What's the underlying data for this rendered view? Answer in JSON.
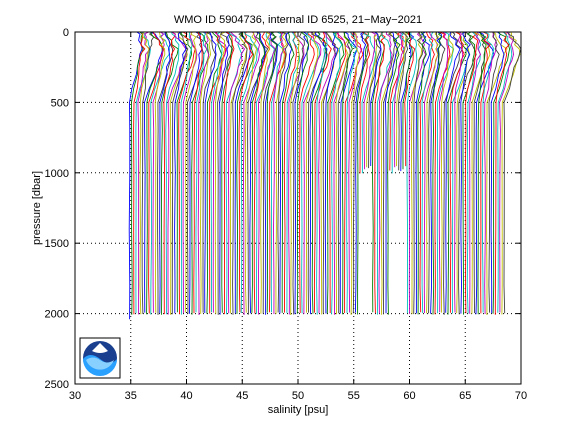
{
  "chart_data": {
    "type": "line",
    "title": "WMO ID 5904736, internal ID 6525, 21−May−2021",
    "xlabel": "salinity [psu]",
    "ylabel": "pressure [dbar]",
    "xlim": [
      30,
      70
    ],
    "ylim": [
      2500,
      0
    ],
    "y_reversed": true,
    "grid": true,
    "x_ticks": [
      "30",
      "35",
      "40",
      "45",
      "50",
      "55",
      "60",
      "65",
      "70"
    ],
    "y_ticks": [
      "0",
      "500",
      "1000",
      "1500",
      "2000",
      "2500"
    ],
    "series_colors": [
      "#0000ff",
      "#008000",
      "#ff0000",
      "#00bfbf",
      "#bf00bf",
      "#bfbf00",
      "#404040"
    ],
    "profile_count": 175,
    "first_profile_salinity": 34.9,
    "last_profile_salinity": 68.5,
    "profile_bottom_dbar": 2000,
    "surface_salinity_offset": 0.6,
    "subsurface_max_offset": 1.4,
    "short_profile_gaps": [
      {
        "start_salinity": 55.4,
        "end_salinity": 56.6,
        "bottom_dbar": 950
      },
      {
        "start_salinity": 58.2,
        "end_salinity": 59.8,
        "bottom_dbar": 950
      }
    ],
    "logo": "NOAA"
  }
}
